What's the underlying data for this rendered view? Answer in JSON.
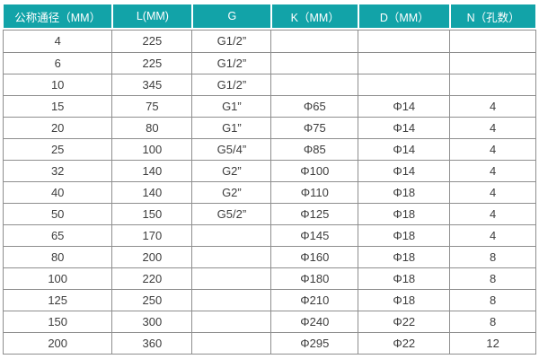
{
  "chart_data": {
    "type": "table",
    "columns": [
      "公称通径（MM）",
      "L(MM)",
      "G",
      "K（MM）",
      "D（MM）",
      "N（孔数）"
    ],
    "col_widths_pct": [
      20.6,
      15.0,
      14.8,
      16.3,
      17.2,
      16.1
    ],
    "rows": [
      [
        "4",
        "225",
        "G1/2”",
        "",
        "",
        ""
      ],
      [
        "6",
        "225",
        "G1/2”",
        "",
        "",
        ""
      ],
      [
        "10",
        "345",
        "G1/2”",
        "",
        "",
        ""
      ],
      [
        "15",
        "75",
        "G1”",
        "Φ65",
        "Φ14",
        "4"
      ],
      [
        "20",
        "80",
        "G1”",
        "Φ75",
        "Φ14",
        "4"
      ],
      [
        "25",
        "100",
        "G5/4”",
        "Φ85",
        "Φ14",
        "4"
      ],
      [
        "32",
        "140",
        "G2”",
        "Φ100",
        "Φ14",
        "4"
      ],
      [
        "40",
        "140",
        "G2”",
        "Φ110",
        "Φ18",
        "4"
      ],
      [
        "50",
        "150",
        "G5/2”",
        "Φ125",
        "Φ18",
        "4"
      ],
      [
        "65",
        "170",
        "",
        "Φ145",
        "Φ18",
        "4"
      ],
      [
        "80",
        "200",
        "",
        "Φ160",
        "Φ18",
        "8"
      ],
      [
        "100",
        "220",
        "",
        "Φ180",
        "Φ18",
        "8"
      ],
      [
        "125",
        "250",
        "",
        "Φ210",
        "Φ18",
        "8"
      ],
      [
        "150",
        "300",
        "",
        "Φ240",
        "Φ22",
        "8"
      ],
      [
        "200",
        "360",
        "",
        "Φ295",
        "Φ22",
        "12"
      ]
    ],
    "title": "",
    "legend": "none",
    "grid": "on"
  },
  "colors": {
    "header_bg": "#12a3a8",
    "header_text": "#ffffff",
    "grid_border": "#8e8e8e",
    "cell_text": "#3d3d3d",
    "page_bg": "#ffffff"
  }
}
